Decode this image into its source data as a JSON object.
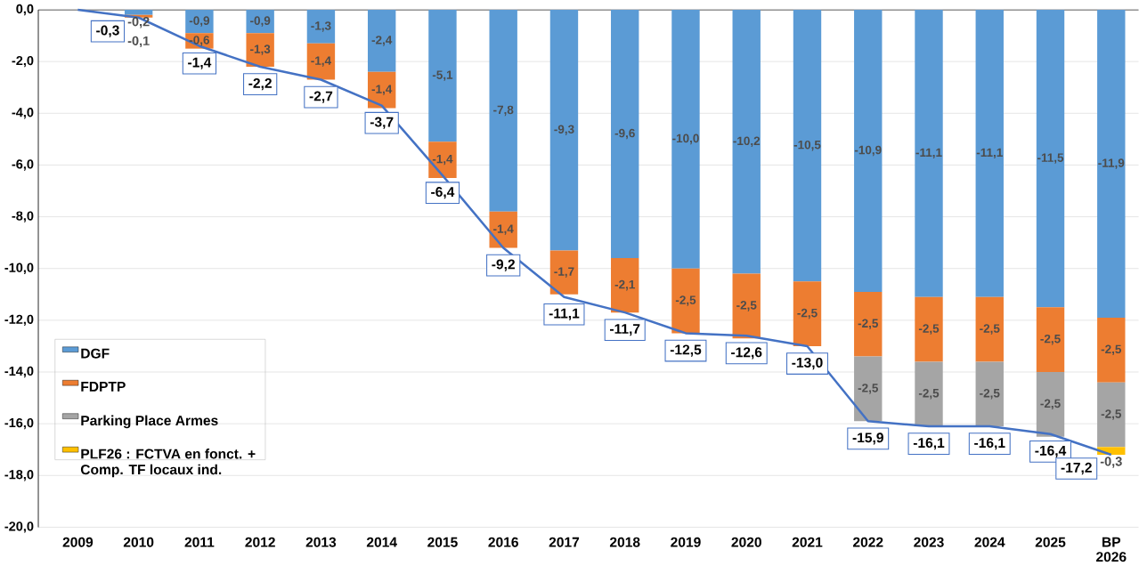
{
  "chart_data": {
    "type": "bar",
    "stacked": true,
    "categories": [
      "2009",
      "2010",
      "2011",
      "2012",
      "2013",
      "2014",
      "2015",
      "2016",
      "2017",
      "2018",
      "2019",
      "2020",
      "2021",
      "2022",
      "2023",
      "2024",
      "2025",
      "BP 2026"
    ],
    "series": [
      {
        "name": "DGF",
        "color": "#5b9bd5",
        "values": [
          null,
          -0.2,
          -0.9,
          -0.9,
          -1.3,
          -2.4,
          -5.1,
          -7.8,
          -9.3,
          -9.6,
          -10.0,
          -10.2,
          -10.5,
          -10.9,
          -11.1,
          -11.1,
          -11.5,
          -11.9
        ],
        "value_labels": [
          null,
          "-0,2",
          "-0,9",
          "-0,9",
          "-1,3",
          "-2,4",
          "-5,1",
          "-7,8",
          "-9,3",
          "-9,6",
          "-10,0",
          "-10,2",
          "-10,5",
          "-10,9",
          "-11,1",
          "-11,1",
          "-11,5",
          "-11,9"
        ]
      },
      {
        "name": "FDPTP",
        "color": "#ed7d31",
        "values": [
          null,
          -0.1,
          -0.6,
          -1.3,
          -1.4,
          -1.4,
          -1.4,
          -1.4,
          -1.7,
          -2.1,
          -2.5,
          -2.5,
          -2.5,
          -2.5,
          -2.5,
          -2.5,
          -2.5,
          -2.5
        ],
        "value_labels": [
          null,
          "-0,1",
          "-0,6",
          "-1,3",
          "-1,4",
          "-1,4",
          "-1,4",
          "-1,4",
          "-1,7",
          "-2,1",
          "-2,5",
          "-2,5",
          "-2,5",
          "-2,5",
          "-2,5",
          "-2,5",
          "-2,5",
          "-2,5"
        ]
      },
      {
        "name": "Parking Place Armes",
        "color": "#a5a5a5",
        "values": [
          null,
          null,
          null,
          null,
          null,
          null,
          null,
          null,
          null,
          null,
          null,
          null,
          null,
          -2.5,
          -2.5,
          -2.5,
          -2.5,
          -2.5
        ],
        "value_labels": [
          null,
          null,
          null,
          null,
          null,
          null,
          null,
          null,
          null,
          null,
          null,
          null,
          null,
          "-2,5",
          "-2,5",
          "-2,5",
          "-2,5",
          "-2,5"
        ]
      },
      {
        "name": "PLF26 : FCTVA en fonct. + Comp. TF locaux ind.",
        "color": "#ffc000",
        "values": [
          null,
          null,
          null,
          null,
          null,
          null,
          null,
          null,
          null,
          null,
          null,
          null,
          null,
          null,
          null,
          null,
          null,
          -0.3
        ],
        "value_labels": [
          null,
          null,
          null,
          null,
          null,
          null,
          null,
          null,
          null,
          null,
          null,
          null,
          null,
          null,
          null,
          null,
          null,
          "-0,3"
        ]
      },
      {
        "type": "line",
        "color": "#4472c4",
        "values": [
          0,
          -0.3,
          -1.4,
          -2.2,
          -2.7,
          -3.7,
          -6.4,
          -9.2,
          -11.1,
          -11.7,
          -12.5,
          -12.6,
          -13.0,
          -15.9,
          -16.1,
          -16.1,
          -16.4,
          -17.2
        ],
        "value_labels": [
          null,
          "-0,3",
          "-1,4",
          "-2,2",
          "-2,7",
          "-3,7",
          "-6,4",
          "-9,2",
          "-11,1",
          "-11,7",
          "-12,5",
          "-12,6",
          "-13,0",
          "-15,9",
          "-16,1",
          "-16,1",
          "-16,4",
          "-17,2"
        ]
      }
    ],
    "ylim": [
      -20,
      0
    ],
    "yticks": [
      {
        "value": 0,
        "label": "0,0"
      },
      {
        "value": -2,
        "label": "-2,0"
      },
      {
        "value": -4,
        "label": "-4,0"
      },
      {
        "value": -6,
        "label": "-6,0"
      },
      {
        "value": -8,
        "label": "-8,0"
      },
      {
        "value": -10,
        "label": "-10,0"
      },
      {
        "value": -12,
        "label": "-12,0"
      },
      {
        "value": -14,
        "label": "-14,0"
      },
      {
        "value": -16,
        "label": "-16,0"
      },
      {
        "value": -18,
        "label": "-18,0"
      },
      {
        "value": -20,
        "label": "-20,0"
      }
    ],
    "grid": "y",
    "legend": "left",
    "line_style": "solid"
  }
}
